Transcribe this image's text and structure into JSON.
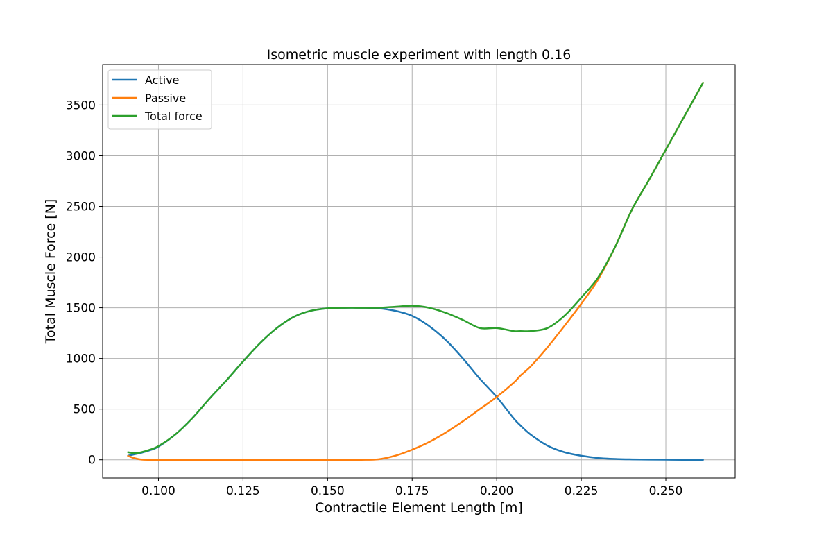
{
  "chart_data": {
    "type": "line",
    "title": "Isometric muscle experiment with length 0.16",
    "xlabel": "Contractile Element Length [m]",
    "ylabel": "Total Muscle Force [N]",
    "xlim": [
      0.0835,
      0.2705
    ],
    "ylim": [
      -180,
      3900
    ],
    "xticks": [
      0.1,
      0.125,
      0.15,
      0.175,
      0.2,
      0.225,
      0.25
    ],
    "xtick_labels": [
      "0.100",
      "0.125",
      "0.150",
      "0.175",
      "0.200",
      "0.225",
      "0.250"
    ],
    "yticks": [
      0,
      500,
      1000,
      1500,
      2000,
      2500,
      3000,
      3500
    ],
    "ytick_labels": [
      "0",
      "500",
      "1000",
      "1500",
      "2000",
      "2500",
      "3000",
      "3500"
    ],
    "grid": true,
    "legend_position": "top-left",
    "x": [
      0.091,
      0.093,
      0.095,
      0.0975,
      0.1,
      0.105,
      0.11,
      0.115,
      0.12,
      0.125,
      0.13,
      0.135,
      0.14,
      0.145,
      0.15,
      0.155,
      0.16,
      0.165,
      0.17,
      0.175,
      0.18,
      0.185,
      0.19,
      0.195,
      0.2,
      0.205,
      0.207,
      0.21,
      0.215,
      0.22,
      0.225,
      0.23,
      0.235,
      0.24,
      0.245,
      0.25,
      0.255,
      0.261
    ],
    "series": [
      {
        "name": "Active",
        "color": "#1f77b4",
        "values": [
          40,
          55,
          70,
          95,
          130,
          250,
          410,
          600,
          780,
          970,
          1150,
          1300,
          1410,
          1470,
          1495,
          1500,
          1500,
          1495,
          1470,
          1420,
          1320,
          1180,
          1000,
          800,
          620,
          410,
          340,
          250,
          140,
          75,
          40,
          18,
          8,
          4,
          2,
          1,
          0,
          0
        ]
      },
      {
        "name": "Passive",
        "color": "#ff7f0e",
        "values": [
          38,
          15,
          2,
          0,
          0,
          0,
          0,
          0,
          0,
          0,
          0,
          0,
          0,
          0,
          0,
          0,
          0,
          5,
          40,
          100,
          175,
          270,
          380,
          500,
          620,
          760,
          830,
          920,
          1110,
          1320,
          1540,
          1780,
          2100,
          2470,
          2760,
          3060,
          3360,
          3720
        ]
      },
      {
        "name": "Total force",
        "color": "#2ca02c",
        "values": [
          75,
          65,
          75,
          100,
          135,
          250,
          410,
          600,
          780,
          970,
          1150,
          1300,
          1410,
          1470,
          1495,
          1500,
          1500,
          1500,
          1510,
          1520,
          1500,
          1450,
          1380,
          1300,
          1300,
          1270,
          1270,
          1270,
          1300,
          1420,
          1600,
          1800,
          2100,
          2470,
          2760,
          3060,
          3360,
          3720
        ]
      }
    ]
  }
}
